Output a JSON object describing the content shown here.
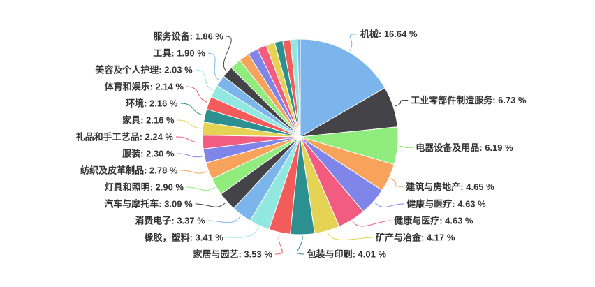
{
  "chart_data": {
    "type": "pie",
    "title": "",
    "unit": "%",
    "background": "#ffffff",
    "label_color": "#333333",
    "start_angle_deg": 0,
    "direction": "clockwise",
    "legend": "none",
    "label_format": "{label}: {value} %",
    "palette": [
      "#7cb5ec",
      "#434348",
      "#90ed7d",
      "#f7a35c",
      "#8085e9",
      "#f15c80",
      "#e4d354",
      "#2b908f",
      "#f45b5b",
      "#91e8e1"
    ],
    "slices": [
      {
        "label": "机械",
        "value": 16.64,
        "color": "#7cb5ec",
        "labeled": true
      },
      {
        "label": "工业零部件制造服务",
        "value": 6.73,
        "color": "#434348",
        "labeled": true
      },
      {
        "label": "电器设备及用品",
        "value": 6.19,
        "color": "#90ed7d",
        "labeled": true
      },
      {
        "label": "建筑与房地产",
        "value": 4.65,
        "color": "#f7a35c",
        "labeled": true
      },
      {
        "label": "健康与医疗",
        "value": 4.63,
        "color": "#8085e9",
        "labeled": true
      },
      {
        "label": "健康与医疗",
        "value": 4.63,
        "color": "#f15c80",
        "labeled": true
      },
      {
        "label": "矿产与冶金",
        "value": 4.17,
        "color": "#e4d354",
        "labeled": true
      },
      {
        "label": "包装与印刷",
        "value": 4.01,
        "color": "#2b908f",
        "labeled": true
      },
      {
        "label": "家居与园艺",
        "value": 3.53,
        "color": "#f45b5b",
        "labeled": true
      },
      {
        "label": "橡胶，塑料",
        "value": 3.41,
        "color": "#91e8e1",
        "labeled": true
      },
      {
        "label": "消费电子",
        "value": 3.37,
        "color": "#7cb5ec",
        "labeled": true
      },
      {
        "label": "汽车与摩托车",
        "value": 3.09,
        "color": "#434348",
        "labeled": true
      },
      {
        "label": "灯具和照明",
        "value": 2.9,
        "color": "#90ed7d",
        "labeled": true
      },
      {
        "label": "纺织及皮革制品",
        "value": 2.78,
        "color": "#f7a35c",
        "labeled": true
      },
      {
        "label": "服装",
        "value": 2.3,
        "color": "#8085e9",
        "labeled": true
      },
      {
        "label": "礼品和手工艺品",
        "value": 2.24,
        "color": "#f15c80",
        "labeled": true
      },
      {
        "label": "家具",
        "value": 2.16,
        "color": "#e4d354",
        "labeled": true
      },
      {
        "label": "环境",
        "value": 2.16,
        "color": "#2b908f",
        "labeled": true
      },
      {
        "label": "体育和娱乐",
        "value": 2.14,
        "color": "#f45b5b",
        "labeled": true
      },
      {
        "label": "美容及个人护理",
        "value": 2.03,
        "color": "#91e8e1",
        "labeled": true
      },
      {
        "label": "工具",
        "value": 1.9,
        "color": "#7cb5ec",
        "labeled": true
      },
      {
        "label": "服务设备",
        "value": 1.86,
        "color": "#434348",
        "labeled": true
      },
      {
        "label": "",
        "value": 1.85,
        "color": "#90ed7d",
        "labeled": false
      },
      {
        "label": "",
        "value": 1.75,
        "color": "#f7a35c",
        "labeled": false
      },
      {
        "label": "",
        "value": 1.65,
        "color": "#8085e9",
        "labeled": false
      },
      {
        "label": "",
        "value": 1.55,
        "color": "#f15c80",
        "labeled": false
      },
      {
        "label": "",
        "value": 1.45,
        "color": "#e4d354",
        "labeled": false
      },
      {
        "label": "",
        "value": 1.35,
        "color": "#2b908f",
        "labeled": false
      },
      {
        "label": "",
        "value": 1.25,
        "color": "#f45b5b",
        "labeled": false
      },
      {
        "label": "",
        "value": 1.15,
        "color": "#91e8e1",
        "labeled": false
      },
      {
        "label": "",
        "value": 0.48,
        "color": "#7cb5ec",
        "labeled": false
      }
    ]
  }
}
